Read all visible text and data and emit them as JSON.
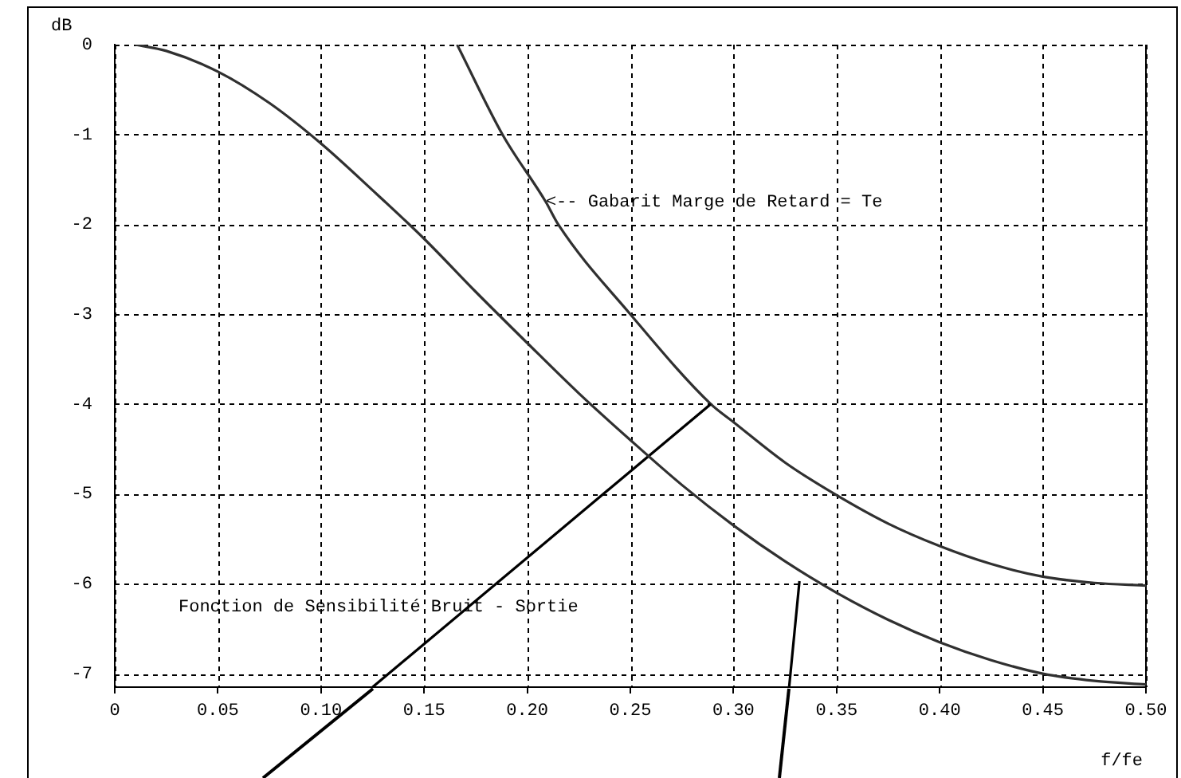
{
  "chart_data": {
    "type": "line",
    "xlabel": "f/fe",
    "ylabel": "dB",
    "series": [
      {
        "color": "#303030",
        "x": [
          0.01,
          0.025,
          0.05,
          0.075,
          0.1,
          0.125,
          0.15,
          0.175,
          0.2,
          0.225,
          0.25,
          0.275,
          0.3,
          0.325,
          0.35,
          0.375,
          0.4,
          0.425,
          0.45,
          0.475,
          0.5
        ],
        "values": [
          0,
          -0.07,
          -0.3,
          -0.65,
          -1.1,
          -1.62,
          -2.16,
          -2.75,
          -3.32,
          -3.88,
          -4.4,
          -4.9,
          -5.35,
          -5.75,
          -6.1,
          -6.4,
          -6.65,
          -6.85,
          -7.0,
          -7.08,
          -7.12
        ]
      },
      {
        "color": "#000000",
        "x": [
          0.125,
          0.289
        ],
        "values": [
          -7.15,
          -4
        ]
      },
      {
        "color": "#000000",
        "x": [
          0.327,
          0.332
        ],
        "values": [
          -7.15,
          -5.97
        ]
      },
      {
        "color": "#303030",
        "x": [
          0.166,
          0.188,
          0.209,
          0.215,
          0.25,
          0.289,
          0.3,
          0.325,
          0.349,
          0.375,
          0.4,
          0.425,
          0.45,
          0.475,
          0.5
        ],
        "values": [
          0,
          -1,
          -1.75,
          -2,
          -3,
          -4,
          -4.2,
          -4.65,
          -5,
          -5.33,
          -5.58,
          -5.78,
          -5.92,
          -5.99,
          -6.02
        ]
      }
    ],
    "xlim": [
      0,
      0.5
    ],
    "ylim": [
      -7.15,
      0
    ],
    "xticks": [
      0,
      0.05,
      {
        "value": 0.1,
        "label": "0.10"
      },
      0.15,
      {
        "value": 0.2,
        "label": "0.20"
      },
      0.25,
      {
        "value": 0.3,
        "label": "0.30"
      },
      0.35,
      {
        "value": 0.4,
        "label": "0.40"
      },
      0.45,
      {
        "value": 0.5,
        "label": "0.50"
      }
    ],
    "yticks": [
      -7,
      -6,
      -5,
      -4,
      -3,
      -2,
      -1,
      0
    ],
    "grid": true,
    "marker": "none",
    "line_style": "solid",
    "legend": false,
    "annotations": [
      {
        "text": "<-- Gabarit Marge de Retard = Te",
        "x": 0.209,
        "y": -1.75
      },
      "Fonction de Sensibilité Bruit - Sortie"
    ]
  }
}
